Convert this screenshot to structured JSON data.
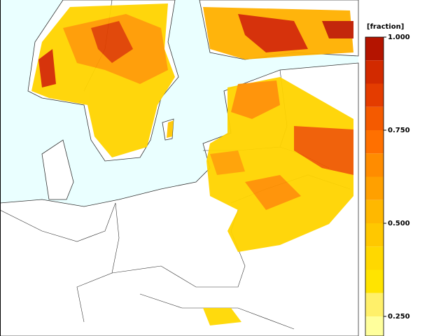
{
  "colorbar": {
    "label": "[fraction]",
    "lim": [
      0.1875,
      1
    ],
    "ticks": [
      {
        "value": 1,
        "label": "1.000"
      },
      {
        "value": 0.75,
        "label": "0.750"
      },
      {
        "value": 0.5,
        "label": "0.500"
      },
      {
        "value": 0.25,
        "label": "0.250"
      }
    ],
    "colors": [
      "#b41400",
      "#d22a00",
      "#e43c00",
      "#f45a00",
      "#ff7000",
      "#ff8c00",
      "#ffa000",
      "#ffb800",
      "#ffc800",
      "#ffd800",
      "#ffe400",
      "#fff06a",
      "#ffff9c"
    ]
  }
}
